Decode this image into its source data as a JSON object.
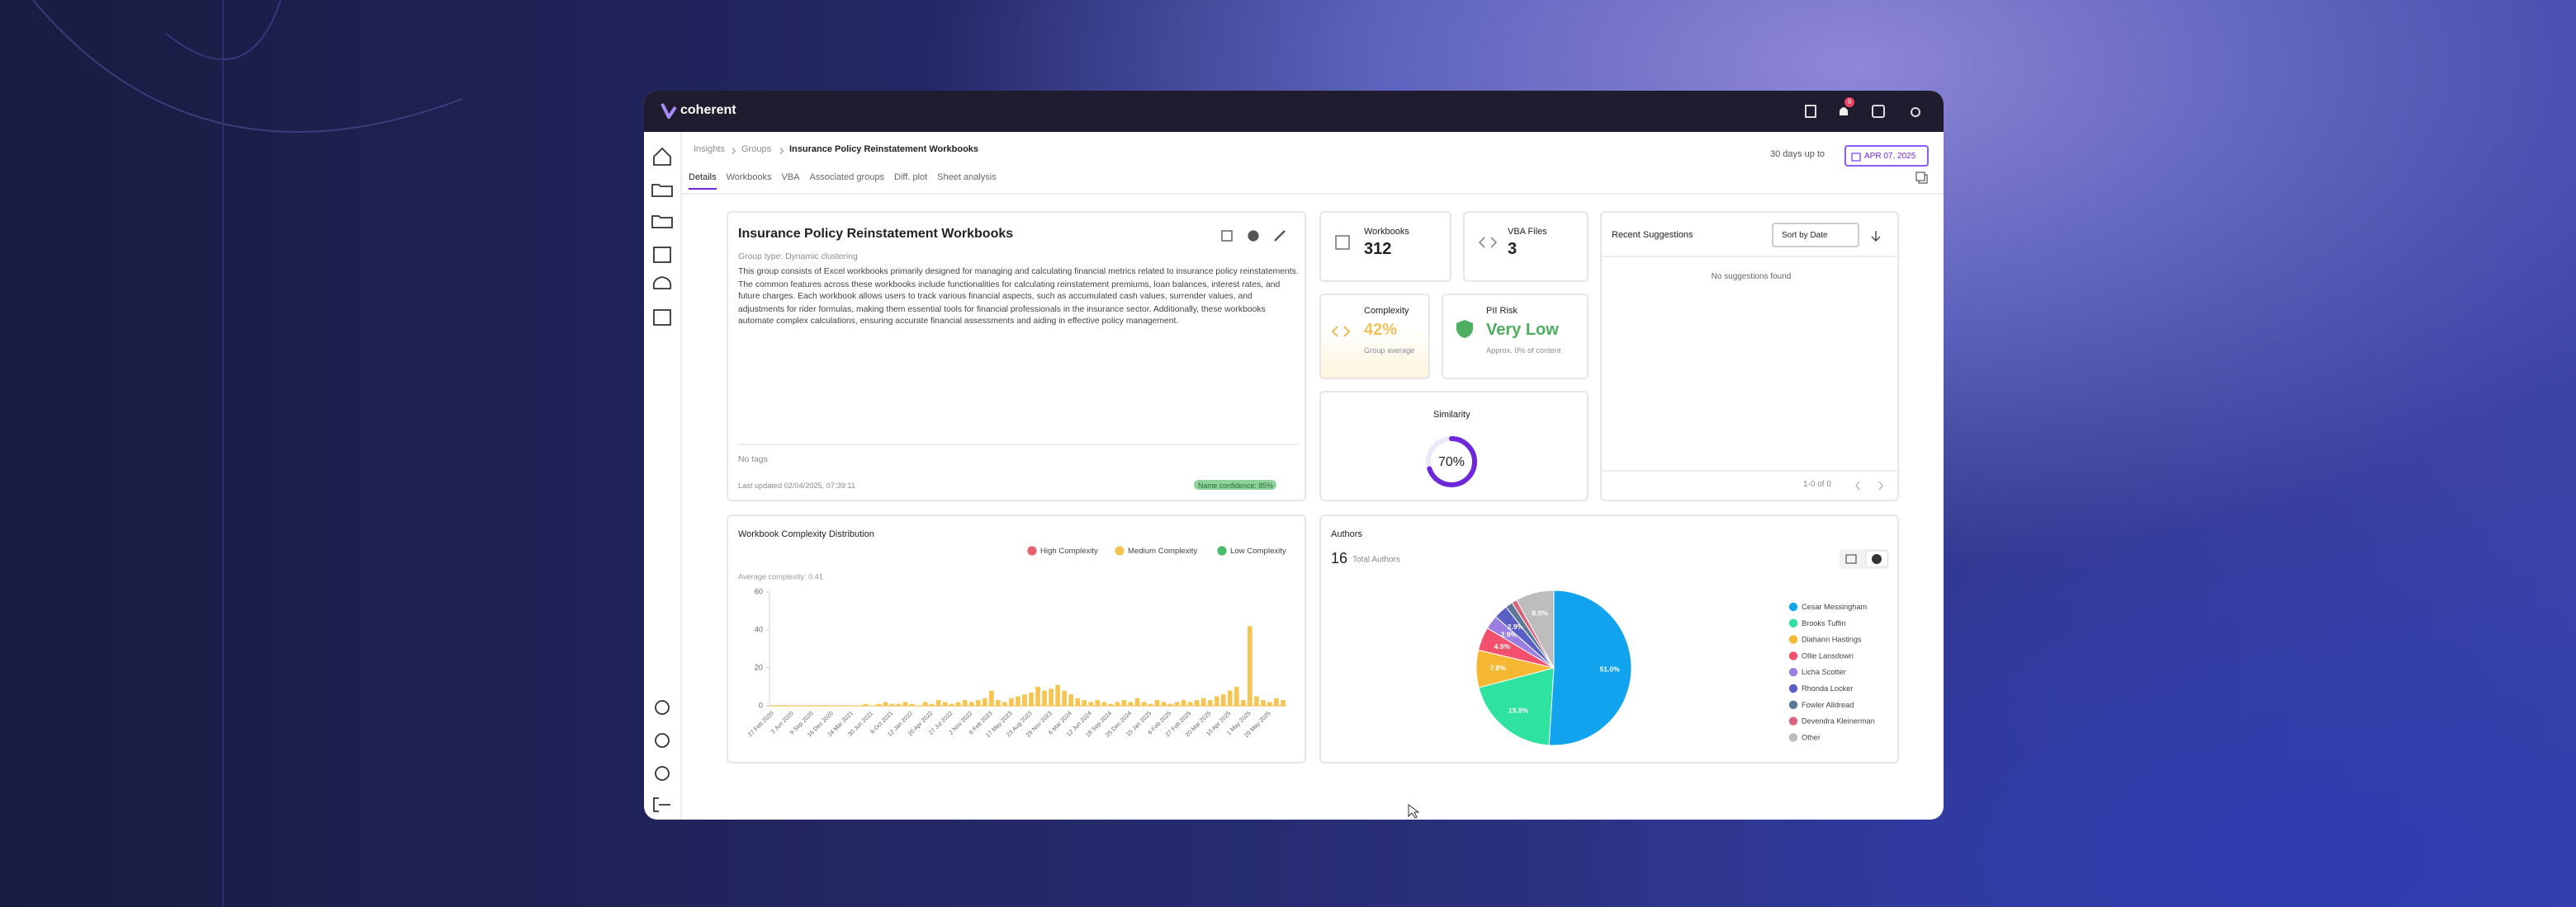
{
  "app": {
    "brand": "coherent",
    "notification_count": "9"
  },
  "breadcrumb": [
    "Insights",
    "Groups",
    "Insurance Policy Reinstatement Workbooks"
  ],
  "tabs": [
    "Details",
    "Workbooks",
    "VBA",
    "Associated groups",
    "Diff. plot",
    "Sheet analysis"
  ],
  "date_range": {
    "label": "30 days up to",
    "date": "APR 07, 2025"
  },
  "overview": {
    "title": "Insurance Policy Reinstatement Workbooks",
    "group_type": "Group type: Dynamic clustering",
    "description": "This group consists of Excel workbooks primarily designed for managing and calculating financial metrics related to insurance policy reinstatements. The common features across these workbooks include functionalities for calculating reinstatement premiums, loan balances, interest rates, and future charges. Each workbook allows users to track various financial aspects, such as accumulated cash values, surrender values, and adjustments for rider formulas, making them essential tools for financial professionals in the insurance sector. Additionally, these workbooks automate complex calculations, ensuring accurate financial assessments and aiding in effective policy management.",
    "tags": "No tags",
    "last_updated": "Last updated 02/04/2025, 07:39:11",
    "name_confidence": "Name confidence: 85%"
  },
  "stats": {
    "workbooks": {
      "label": "Workbooks",
      "value": "312"
    },
    "vba": {
      "label": "VBA Files",
      "value": "3"
    },
    "complexity": {
      "label": "Complexity",
      "value": "42%",
      "note": "Group average"
    },
    "pii": {
      "label": "PII Risk",
      "value": "Very Low",
      "note": "Approx. 0% of content"
    },
    "similarity": {
      "label": "Similarity",
      "value": 70,
      "value_label": "70%"
    }
  },
  "suggestions": {
    "title": "Recent Suggestions",
    "sort": "Sort by Date",
    "empty": "No suggestions found",
    "pagination": "1-0 of 0"
  },
  "authors_total": {
    "value": "16",
    "label": "Total Authors"
  },
  "chart_data": [
    {
      "type": "bar",
      "title": "Workbook Complexity Distribution",
      "subtitle": "Average complexity: 0.41",
      "categories": [
        "27 Feb 2020",
        null,
        null,
        "3 Jun 2020",
        null,
        null,
        "9 Sep 2020",
        null,
        null,
        "16 Dec 2020",
        null,
        null,
        "24 Mar 2021",
        null,
        null,
        "30 Jun 2021",
        null,
        null,
        "6 Oct 2021",
        null,
        null,
        "12 Jan 2022",
        null,
        null,
        "20 Apr 2022",
        null,
        null,
        "27 Jul 2022",
        null,
        null,
        "2 Nov 2022",
        null,
        null,
        "8 Feb 2023",
        null,
        null,
        "17 May 2023",
        null,
        null,
        "23 Aug 2023",
        null,
        null,
        "29 Nov 2023",
        null,
        null,
        "6 Mar 2024",
        null,
        null,
        "12 Jun 2024",
        null,
        null,
        "18 Sep 2024",
        null,
        null,
        "25 Dec 2024",
        null,
        null,
        "15 Jan 2025",
        null,
        null,
        "6 Feb 2025",
        null,
        null,
        "27 Feb 2025",
        null,
        null,
        "20 Mar 2025",
        null,
        null,
        "10 Apr 2025",
        null,
        null,
        "1 May 2025",
        null,
        null,
        "29 May 2025",
        null,
        null
      ],
      "series": [
        {
          "name": "High Complexity",
          "color": "#e8626e",
          "values": [
            0,
            0,
            0,
            0,
            0,
            0,
            0,
            0,
            0,
            0,
            0,
            0,
            0,
            0,
            0,
            0,
            0,
            0,
            0,
            0,
            0,
            0,
            0,
            0,
            0,
            0,
            0,
            0,
            0,
            0,
            0,
            0,
            0,
            0,
            0,
            0,
            0,
            0,
            0,
            0,
            0,
            0,
            0,
            0,
            0,
            0,
            0,
            0,
            0,
            0,
            0,
            0,
            0,
            0,
            0,
            0,
            0,
            0,
            0,
            0,
            0,
            0,
            0,
            0,
            0,
            0,
            0,
            0,
            0,
            0,
            0,
            0,
            0,
            0,
            0,
            0,
            0,
            0
          ]
        },
        {
          "name": "Medium Complexity",
          "color": "#f5c451",
          "values": [
            0,
            0,
            0,
            0,
            0,
            0,
            0,
            0,
            0,
            0,
            0,
            0,
            0,
            0,
            1,
            0,
            1,
            2,
            1,
            1,
            2,
            1,
            0,
            2,
            1,
            3,
            2,
            1,
            2,
            3,
            2,
            3,
            4,
            8,
            3,
            2,
            4,
            5,
            6,
            7,
            10,
            8,
            9,
            11,
            8,
            6,
            4,
            3,
            2,
            3,
            2,
            1,
            2,
            3,
            2,
            4,
            2,
            1,
            3,
            2,
            1,
            2,
            3,
            2,
            3,
            4,
            3,
            5,
            6,
            8,
            10,
            3,
            42,
            5,
            3,
            2,
            4,
            3
          ]
        },
        {
          "name": "Low Complexity",
          "color": "#4cba6b",
          "values": [
            0,
            0,
            0,
            0,
            0,
            0,
            0,
            0,
            0,
            0,
            0,
            0,
            0,
            0,
            0,
            0,
            0,
            0,
            0,
            0,
            0,
            0,
            0,
            0,
            0,
            0,
            0,
            0,
            0,
            0,
            0,
            0,
            0,
            0,
            0,
            0,
            0,
            0,
            0,
            0,
            0,
            0,
            0,
            0,
            0,
            0,
            0,
            0,
            0,
            0,
            0,
            0,
            0,
            0,
            0,
            0,
            0,
            0,
            0,
            0,
            0,
            0,
            0,
            0,
            0,
            0,
            0,
            0,
            0,
            0,
            0,
            0,
            0,
            0,
            0,
            0,
            0,
            0
          ]
        }
      ],
      "ylim": [
        0,
        60
      ],
      "yticks": [
        0,
        20,
        40,
        60
      ]
    },
    {
      "type": "pie",
      "title": "Authors",
      "categories": [
        "Cesar Messingham",
        "Brooks Tuffin",
        "Diahann Hastings",
        "Ollie Lansdown",
        "Licha Scotter",
        "Rhonda Locker",
        "Fowler Alldread",
        "Devendra Kleinerman",
        "Other"
      ],
      "values": [
        51.0,
        19.9,
        7.8,
        4.9,
        2.9,
        2.9,
        1.5,
        1.1,
        8.0
      ],
      "value_labels": [
        "51.0%",
        "19.9%",
        "7.8%",
        "4.9%",
        "2.9%",
        "2.9%",
        null,
        null,
        "8.0%"
      ],
      "colors": [
        "#12a3ef",
        "#2ee3a0",
        "#f6b733",
        "#f2506c",
        "#9b7fe0",
        "#5a5fc6",
        "#5b7897",
        "#d9637a",
        "#bdbdbd"
      ]
    }
  ]
}
